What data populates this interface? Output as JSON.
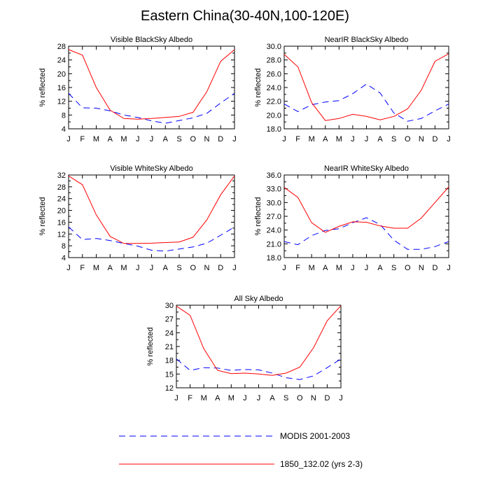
{
  "page": {
    "title": "Eastern China(30-40N,100-120E)"
  },
  "colors": {
    "modis": "#0000ff",
    "model": "#ff0000",
    "axis": "#000000"
  },
  "legend": [
    {
      "label": "MODIS 2001-2003",
      "style": "dashed",
      "color": "#0000ff"
    },
    {
      "label": "1850_132.02 (yrs 2-3)",
      "style": "solid",
      "color": "#ff0000"
    }
  ],
  "chart_data": [
    {
      "type": "line",
      "title": "Visible BlackSky Albedo",
      "ylabel": "% reflected",
      "categories": [
        "J",
        "F",
        "M",
        "A",
        "M",
        "J",
        "J",
        "A",
        "S",
        "O",
        "N",
        "D",
        "J"
      ],
      "ylim": [
        4,
        28
      ],
      "yticks": [
        "4",
        "8",
        "12",
        "16",
        "20",
        "24",
        "28"
      ],
      "series": [
        {
          "name": "MODIS 2001-2003",
          "values": [
            14.3,
            10.1,
            10.0,
            9.2,
            8.0,
            7.3,
            6.3,
            5.6,
            6.4,
            7.2,
            8.5,
            11.5,
            14.3
          ]
        },
        {
          "name": "1850_132.02 (yrs 2-3)",
          "values": [
            27.0,
            25.4,
            16.0,
            9.4,
            7.0,
            6.8,
            7.0,
            7.3,
            7.6,
            8.8,
            14.8,
            23.6,
            27.0
          ]
        }
      ]
    },
    {
      "type": "line",
      "title": "NearIR BlackSky Albedo",
      "ylabel": "% reflected",
      "categories": [
        "J",
        "F",
        "M",
        "A",
        "M",
        "J",
        "J",
        "A",
        "S",
        "O",
        "N",
        "D",
        "J"
      ],
      "ylim": [
        18,
        30
      ],
      "yticks": [
        "18.0",
        "20.0",
        "22.0",
        "24.0",
        "26.0",
        "28.0",
        "30.0"
      ],
      "series": [
        {
          "name": "MODIS 2001-2003",
          "values": [
            21.6,
            20.5,
            21.5,
            21.9,
            22.1,
            23.1,
            24.5,
            23.2,
            20.3,
            19.1,
            19.5,
            20.6,
            21.6
          ]
        },
        {
          "name": "1850_132.02 (yrs 2-3)",
          "values": [
            28.8,
            27.0,
            21.8,
            19.2,
            19.5,
            20.1,
            19.8,
            19.3,
            19.8,
            20.9,
            23.6,
            27.8,
            28.9
          ]
        }
      ]
    },
    {
      "type": "line",
      "title": "Visible WhiteSky Albedo",
      "ylabel": "% reflected",
      "categories": [
        "J",
        "F",
        "M",
        "A",
        "M",
        "J",
        "J",
        "A",
        "S",
        "O",
        "N",
        "D",
        "J"
      ],
      "ylim": [
        4,
        32
      ],
      "yticks": [
        "4",
        "8",
        "12",
        "16",
        "20",
        "24",
        "28",
        "32"
      ],
      "series": [
        {
          "name": "MODIS 2001-2003",
          "values": [
            14.4,
            10.1,
            10.5,
            9.8,
            8.8,
            7.9,
            6.5,
            6.2,
            6.9,
            7.6,
            8.9,
            11.6,
            14.4
          ]
        },
        {
          "name": "1850_132.02 (yrs 2-3)",
          "values": [
            31.7,
            28.7,
            18.5,
            11.2,
            8.8,
            8.8,
            8.9,
            9.1,
            9.3,
            10.9,
            16.8,
            25.3,
            31.7
          ]
        }
      ]
    },
    {
      "type": "line",
      "title": "NearIR WhiteSky Albedo",
      "ylabel": "% reflected",
      "categories": [
        "J",
        "F",
        "M",
        "A",
        "M",
        "J",
        "J",
        "A",
        "S",
        "O",
        "N",
        "D",
        "J"
      ],
      "ylim": [
        18,
        36
      ],
      "yticks": [
        "18.0",
        "21.0",
        "24.0",
        "27.0",
        "30.0",
        "33.0",
        "36.0"
      ],
      "series": [
        {
          "name": "MODIS 2001-2003",
          "values": [
            21.5,
            20.8,
            22.8,
            23.9,
            24.3,
            25.6,
            26.7,
            25.2,
            21.8,
            19.8,
            19.8,
            20.4,
            21.5
          ]
        },
        {
          "name": "1850_132.02 (yrs 2-3)",
          "values": [
            33.3,
            31.1,
            25.6,
            23.5,
            24.8,
            25.8,
            25.7,
            24.9,
            24.4,
            24.4,
            26.6,
            30.0,
            33.4
          ]
        }
      ]
    },
    {
      "type": "line",
      "title": "All Sky Albedo",
      "ylabel": "% reflected",
      "categories": [
        "J",
        "F",
        "M",
        "A",
        "M",
        "J",
        "J",
        "A",
        "S",
        "O",
        "N",
        "D",
        "J"
      ],
      "ylim": [
        12,
        30
      ],
      "yticks": [
        "12",
        "15",
        "18",
        "21",
        "24",
        "27",
        "30"
      ],
      "series": [
        {
          "name": "MODIS 2001-2003",
          "values": [
            18.3,
            15.8,
            16.4,
            16.3,
            15.8,
            16.0,
            15.9,
            15.2,
            14.2,
            13.8,
            14.6,
            16.4,
            18.3
          ]
        },
        {
          "name": "1850_132.02 (yrs 2-3)",
          "values": [
            29.8,
            27.8,
            20.5,
            15.8,
            15.1,
            15.2,
            15.0,
            14.7,
            15.2,
            16.5,
            20.7,
            26.6,
            29.9
          ]
        }
      ]
    }
  ]
}
